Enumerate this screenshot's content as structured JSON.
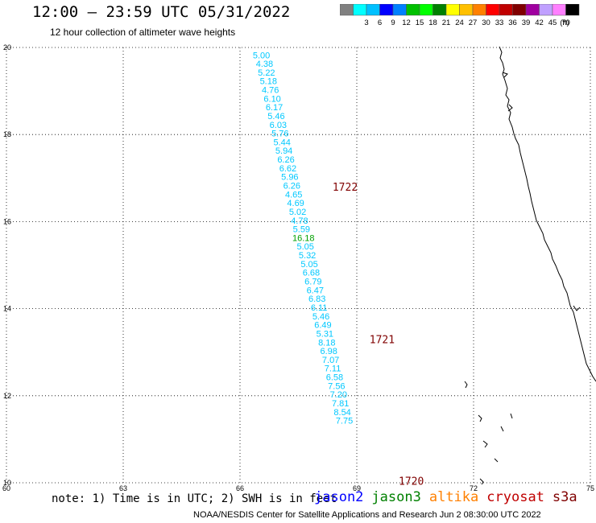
{
  "header": {
    "title": "12:00 – 23:59 UTC 05/31/2022",
    "subtitle": "12 hour collection of altimeter wave heights"
  },
  "legend": {
    "colors": [
      "#808080",
      "#00ffff",
      "#00c0ff",
      "#0000ff",
      "#0080ff",
      "#00c000",
      "#00ff00",
      "#008000",
      "#ffff00",
      "#ffc000",
      "#ff8000",
      "#ff0000",
      "#c00000",
      "#800000",
      "#a000a0",
      "#c0a0ff",
      "#ff80ff",
      "#000000"
    ],
    "labels": [
      "3",
      "6",
      "9",
      "12",
      "15",
      "18",
      "21",
      "24",
      "27",
      "30",
      "33",
      "36",
      "39",
      "42",
      "45",
      "70"
    ],
    "unit": "(ft)"
  },
  "axes": {
    "x_ticks": [
      "60",
      "63",
      "66",
      "69",
      "72",
      "75"
    ],
    "y_ticks": [
      "10",
      "12",
      "14",
      "16",
      "18",
      "20"
    ],
    "xlim": [
      60,
      75
    ],
    "ylim": [
      10,
      20
    ]
  },
  "footer": {
    "note": "note:  1) Time is in UTC;  2) SWH is in feet",
    "credit": "NOAA/NESDIS Center for Satellite Applications and Research    Jun  2 08:30:00 UTC 2022"
  },
  "satellites": [
    {
      "name": "jason2",
      "color": "#0000ff"
    },
    {
      "name": "jason3",
      "color": "#008000"
    },
    {
      "name": "altika",
      "color": "#ff8000"
    },
    {
      "name": "cryosat",
      "color": "#c00000"
    },
    {
      "name": "s3a",
      "color": "#800000"
    }
  ],
  "chart_data": {
    "type": "scatter",
    "track_color": "#00c8ff",
    "highlight_color": "#00a000",
    "time_color": "#800000",
    "points": [
      {
        "lon": 66.55,
        "lat": 19.82,
        "value": "5.00"
      },
      {
        "lon": 66.63,
        "lat": 19.63,
        "value": "4.38"
      },
      {
        "lon": 66.68,
        "lat": 19.43,
        "value": "5.22"
      },
      {
        "lon": 66.73,
        "lat": 19.23,
        "value": "5.18"
      },
      {
        "lon": 66.78,
        "lat": 19.03,
        "value": "4.76"
      },
      {
        "lon": 66.83,
        "lat": 18.83,
        "value": "6.10"
      },
      {
        "lon": 66.88,
        "lat": 18.63,
        "value": "6.17"
      },
      {
        "lon": 66.93,
        "lat": 18.43,
        "value": "5.46"
      },
      {
        "lon": 66.98,
        "lat": 18.23,
        "value": "6.03"
      },
      {
        "lon": 67.03,
        "lat": 18.03,
        "value": "5.76"
      },
      {
        "lon": 67.08,
        "lat": 17.83,
        "value": "5.44"
      },
      {
        "lon": 67.13,
        "lat": 17.63,
        "value": "5.94"
      },
      {
        "lon": 67.18,
        "lat": 17.43,
        "value": "6.26"
      },
      {
        "lon": 67.23,
        "lat": 17.23,
        "value": "6.62"
      },
      {
        "lon": 67.28,
        "lat": 17.03,
        "value": "5.96"
      },
      {
        "lon": 67.33,
        "lat": 16.83,
        "value": "6.26"
      },
      {
        "lon": 67.38,
        "lat": 16.63,
        "value": "4.65"
      },
      {
        "lon": 67.43,
        "lat": 16.43,
        "value": "4.69"
      },
      {
        "lon": 67.48,
        "lat": 16.23,
        "value": "5.02"
      },
      {
        "lon": 67.53,
        "lat": 16.03,
        "value": "4.78"
      },
      {
        "lon": 67.58,
        "lat": 15.83,
        "value": "5.59"
      },
      {
        "lon": 67.63,
        "lat": 15.63,
        "value": "16.18",
        "highlight": true
      },
      {
        "lon": 67.68,
        "lat": 15.43,
        "value": "5.05"
      },
      {
        "lon": 67.73,
        "lat": 15.23,
        "value": "5.32"
      },
      {
        "lon": 67.78,
        "lat": 15.03,
        "value": "5.05"
      },
      {
        "lon": 67.83,
        "lat": 14.83,
        "value": "6.68"
      },
      {
        "lon": 67.88,
        "lat": 14.63,
        "value": "6.79"
      },
      {
        "lon": 67.93,
        "lat": 14.43,
        "value": "6.47"
      },
      {
        "lon": 67.98,
        "lat": 14.23,
        "value": "6.83"
      },
      {
        "lon": 68.03,
        "lat": 14.03,
        "value": "6.11"
      },
      {
        "lon": 68.08,
        "lat": 13.83,
        "value": "5.46"
      },
      {
        "lon": 68.13,
        "lat": 13.63,
        "value": "6.49"
      },
      {
        "lon": 68.18,
        "lat": 13.43,
        "value": "5.31"
      },
      {
        "lon": 68.23,
        "lat": 13.23,
        "value": "8.18"
      },
      {
        "lon": 68.28,
        "lat": 13.03,
        "value": "6.98"
      },
      {
        "lon": 68.33,
        "lat": 12.83,
        "value": "7.07"
      },
      {
        "lon": 68.38,
        "lat": 12.63,
        "value": "7.11"
      },
      {
        "lon": 68.43,
        "lat": 12.43,
        "value": "6.58"
      },
      {
        "lon": 68.48,
        "lat": 12.23,
        "value": "7.56"
      },
      {
        "lon": 68.53,
        "lat": 12.03,
        "value": "7.20"
      },
      {
        "lon": 68.58,
        "lat": 11.83,
        "value": "7.81"
      },
      {
        "lon": 68.63,
        "lat": 11.63,
        "value": "8.54"
      },
      {
        "lon": 68.68,
        "lat": 11.43,
        "value": "7.75"
      }
    ],
    "time_labels": [
      {
        "lon": 68.7,
        "lat": 16.8,
        "text": "1722"
      },
      {
        "lon": 69.65,
        "lat": 13.3,
        "text": "1721"
      },
      {
        "lon": 70.4,
        "lat": 10.05,
        "text": "1720"
      }
    ]
  }
}
